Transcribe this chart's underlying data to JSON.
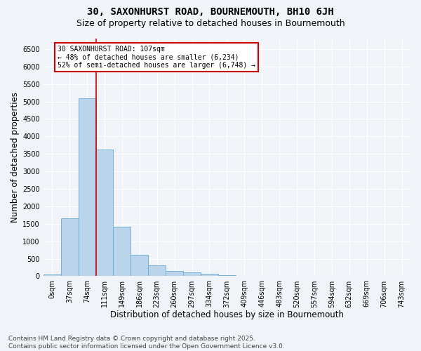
{
  "title1": "30, SAXONHURST ROAD, BOURNEMOUTH, BH10 6JH",
  "title2": "Size of property relative to detached houses in Bournemouth",
  "xlabel": "Distribution of detached houses by size in Bournemouth",
  "ylabel": "Number of detached properties",
  "footer1": "Contains HM Land Registry data © Crown copyright and database right 2025.",
  "footer2": "Contains public sector information licensed under the Open Government Licence v3.0.",
  "bar_labels": [
    "0sqm",
    "37sqm",
    "74sqm",
    "111sqm",
    "149sqm",
    "186sqm",
    "223sqm",
    "260sqm",
    "297sqm",
    "334sqm",
    "372sqm",
    "409sqm",
    "446sqm",
    "483sqm",
    "520sqm",
    "557sqm",
    "594sqm",
    "632sqm",
    "669sqm",
    "706sqm",
    "743sqm"
  ],
  "bar_values": [
    50,
    1650,
    5100,
    3620,
    1420,
    610,
    310,
    155,
    100,
    70,
    35,
    10,
    5,
    2,
    0,
    0,
    0,
    0,
    0,
    0,
    0
  ],
  "bar_color": "#bad4eb",
  "bar_edge_color": "#6aaad4",
  "vline_x": 2.5,
  "vline_color": "#cc0000",
  "annotation_title": "30 SAXONHURST ROAD: 107sqm",
  "annotation_line1": "← 48% of detached houses are smaller (6,234)",
  "annotation_line2": "52% of semi-detached houses are larger (6,748) →",
  "annotation_box_color": "#ffffff",
  "annotation_edge_color": "#cc0000",
  "ylim": [
    0,
    6800
  ],
  "yticks": [
    0,
    500,
    1000,
    1500,
    2000,
    2500,
    3000,
    3500,
    4000,
    4500,
    5000,
    5500,
    6000,
    6500
  ],
  "bg_color": "#f0f4f8",
  "plot_bg_color": "#f0f4f8",
  "grid_color": "#ffffff",
  "title1_fontsize": 10,
  "title2_fontsize": 9,
  "xlabel_fontsize": 8.5,
  "ylabel_fontsize": 8.5,
  "tick_fontsize": 7,
  "footer_fontsize": 6.5
}
